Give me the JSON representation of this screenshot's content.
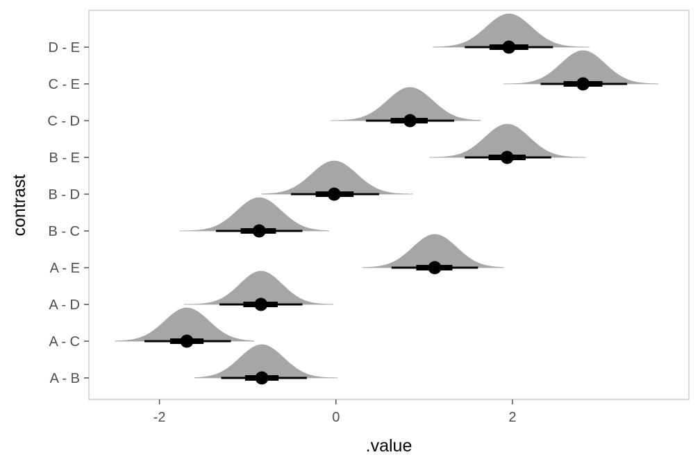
{
  "chart_data": {
    "type": "halfeye",
    "title": "",
    "xlabel": ".value",
    "ylabel": "contrast",
    "xlim": [
      -2.8,
      4.0
    ],
    "x_ticks": [
      -2,
      0,
      2
    ],
    "x_tick_labels": [
      "-2",
      "0",
      "2"
    ],
    "categories": [
      "A - B",
      "A - C",
      "A - D",
      "A - E",
      "B - C",
      "B - D",
      "B - E",
      "C - D",
      "C - E",
      "D - E"
    ],
    "point_estimates": [
      -0.84,
      -1.69,
      -0.85,
      1.12,
      -0.87,
      -0.02,
      1.94,
      0.84,
      2.8,
      1.96
    ],
    "interval_66": [
      [
        -1.03,
        -0.65
      ],
      [
        -1.88,
        -1.5
      ],
      [
        -1.05,
        -0.66
      ],
      [
        0.91,
        1.32
      ],
      [
        -1.08,
        -0.68
      ],
      [
        -0.23,
        0.2
      ],
      [
        1.73,
        2.15
      ],
      [
        0.62,
        1.04
      ],
      [
        2.58,
        3.02
      ],
      [
        1.74,
        2.18
      ]
    ],
    "interval_95": [
      [
        -1.3,
        -0.33
      ],
      [
        -2.17,
        -1.19
      ],
      [
        -1.32,
        -0.38
      ],
      [
        0.63,
        1.61
      ],
      [
        -1.36,
        -0.38
      ],
      [
        -0.51,
        0.49
      ],
      [
        1.46,
        2.44
      ],
      [
        0.34,
        1.34
      ],
      [
        2.32,
        3.3
      ],
      [
        1.46,
        2.46
      ]
    ],
    "density_range": [
      [
        -1.6,
        0.02
      ],
      [
        -2.5,
        -0.93
      ],
      [
        -1.72,
        -0.03
      ],
      [
        0.3,
        1.9
      ],
      [
        -1.77,
        -0.08
      ],
      [
        -0.84,
        0.87
      ],
      [
        1.06,
        2.83
      ],
      [
        -0.06,
        1.64
      ],
      [
        1.9,
        3.65
      ],
      [
        1.1,
        2.87
      ]
    ],
    "colors": {
      "density_fill": "#a6a6a6",
      "interval": "#000000",
      "point": "#000000",
      "panel_border": "#d9d9d9",
      "axis_text": "#4d4d4d"
    },
    "grid": false
  }
}
